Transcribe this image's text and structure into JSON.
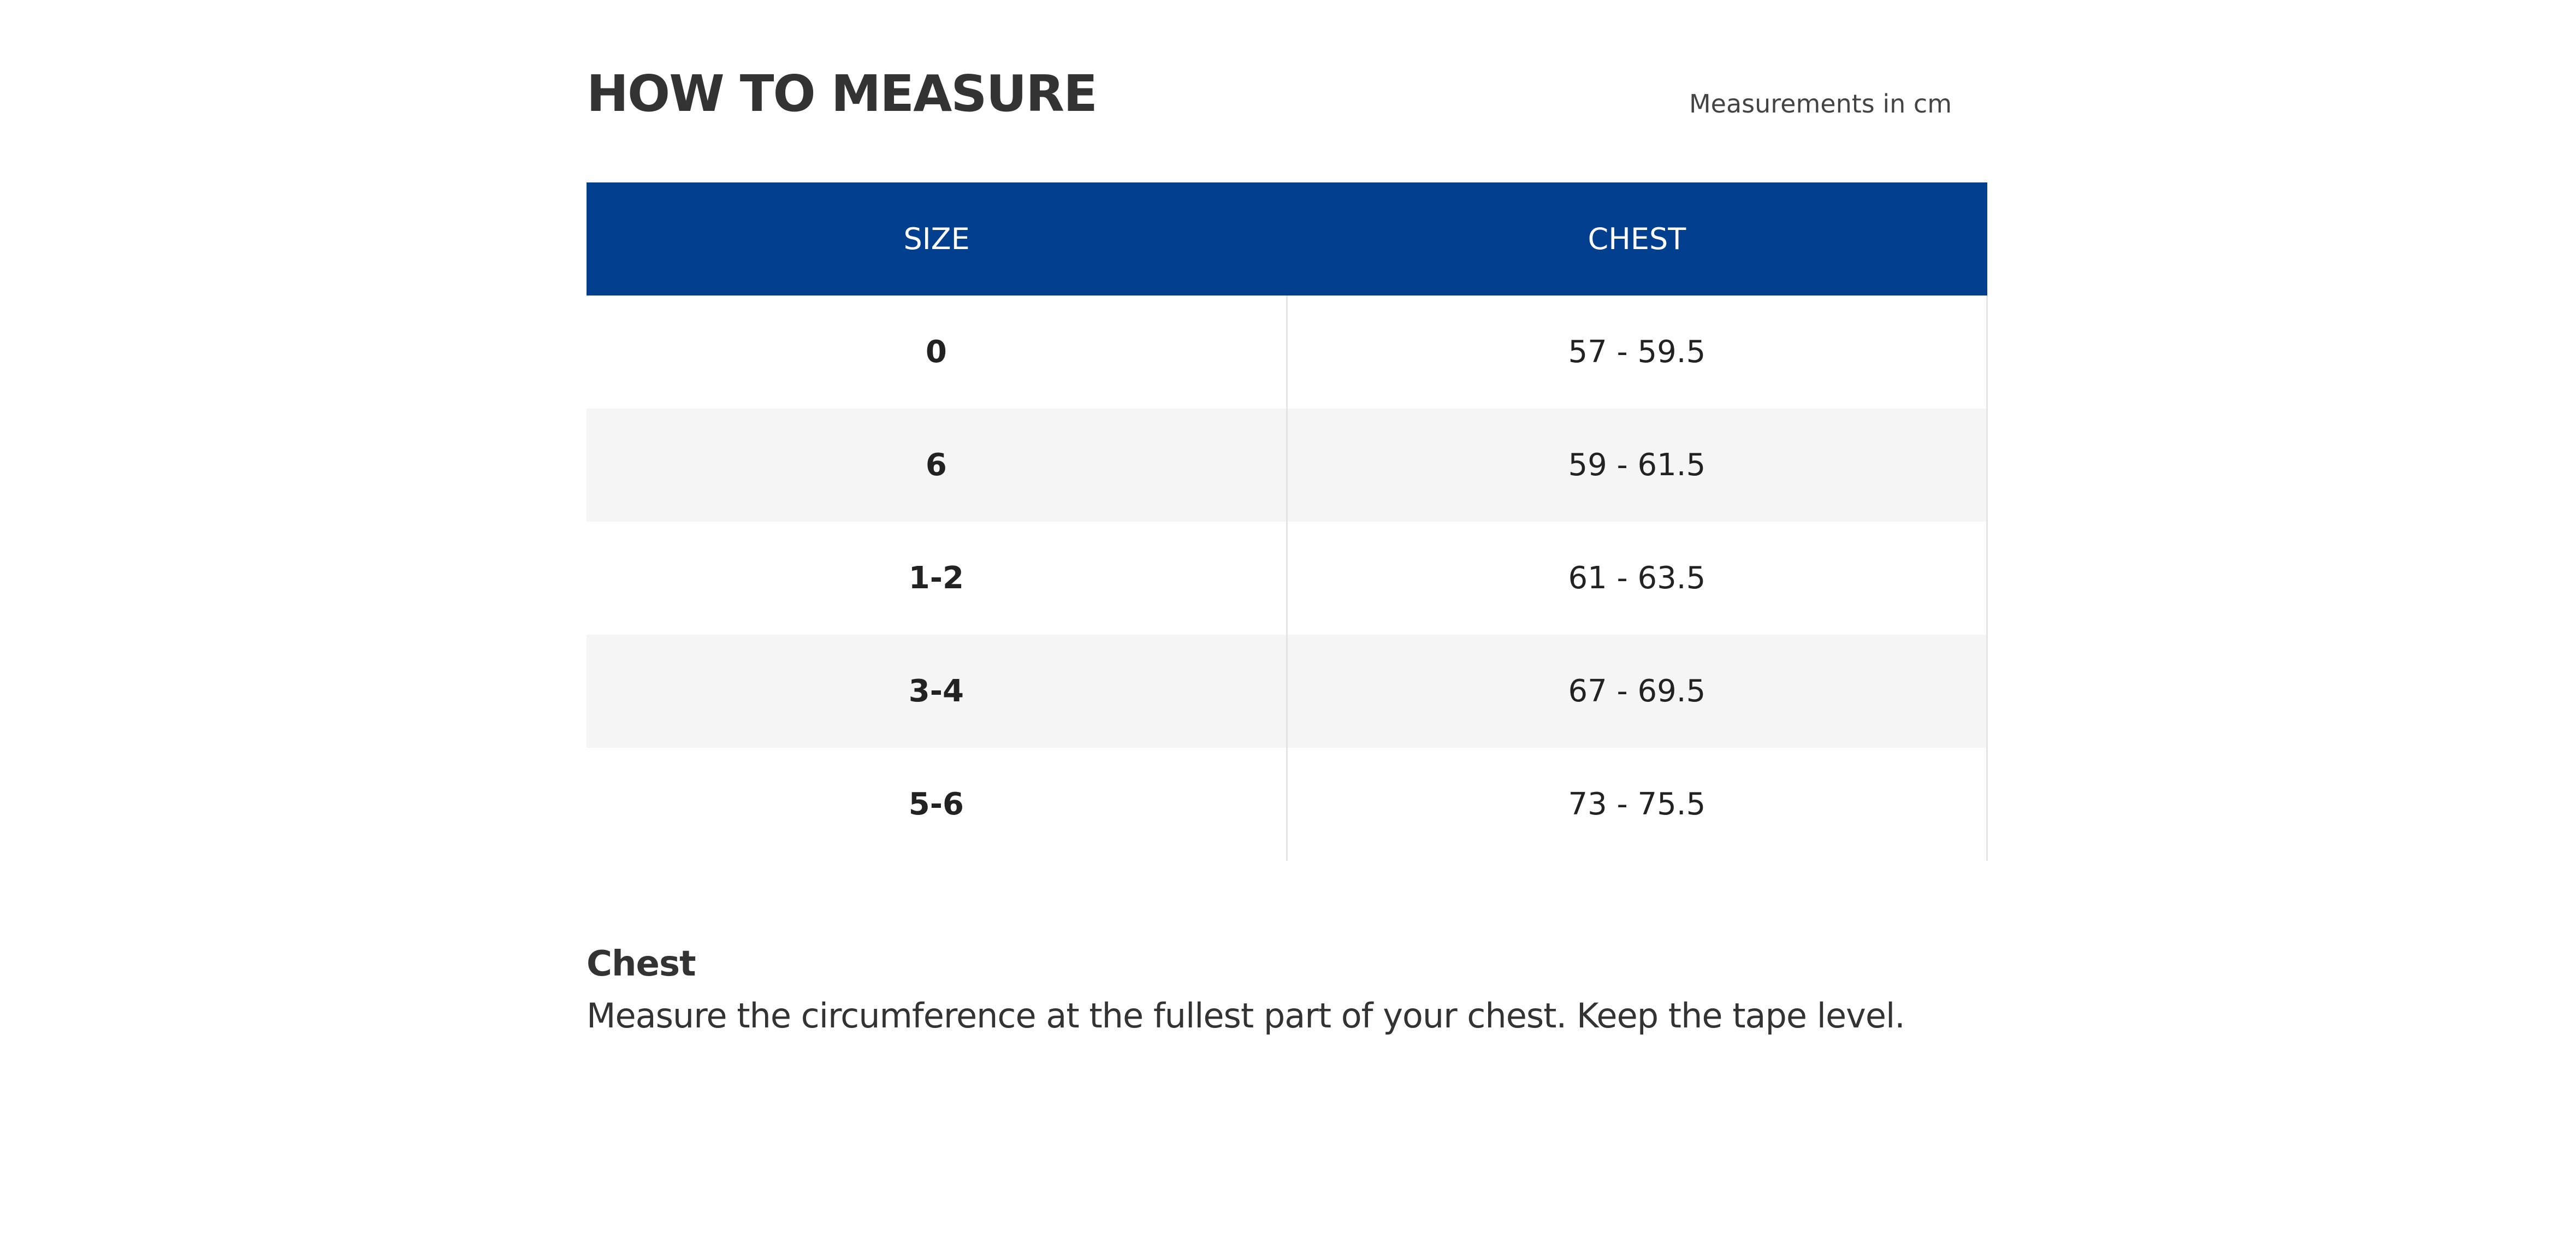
{
  "header": {
    "title": "HOW TO MEASURE",
    "note": "Measurements in cm"
  },
  "table": {
    "columns": [
      "SIZE",
      "CHEST"
    ],
    "rows": [
      [
        "0",
        "57 - 59.5"
      ],
      [
        "6",
        "59 - 61.5"
      ],
      [
        "1-2",
        "61 - 63.5"
      ],
      [
        "3-4",
        "67 - 69.5"
      ],
      [
        "5-6",
        "73 - 75.5"
      ]
    ]
  },
  "section": {
    "heading": "Chest",
    "text": "Measure the circumference at the fullest part of your chest. Keep the tape level."
  }
}
